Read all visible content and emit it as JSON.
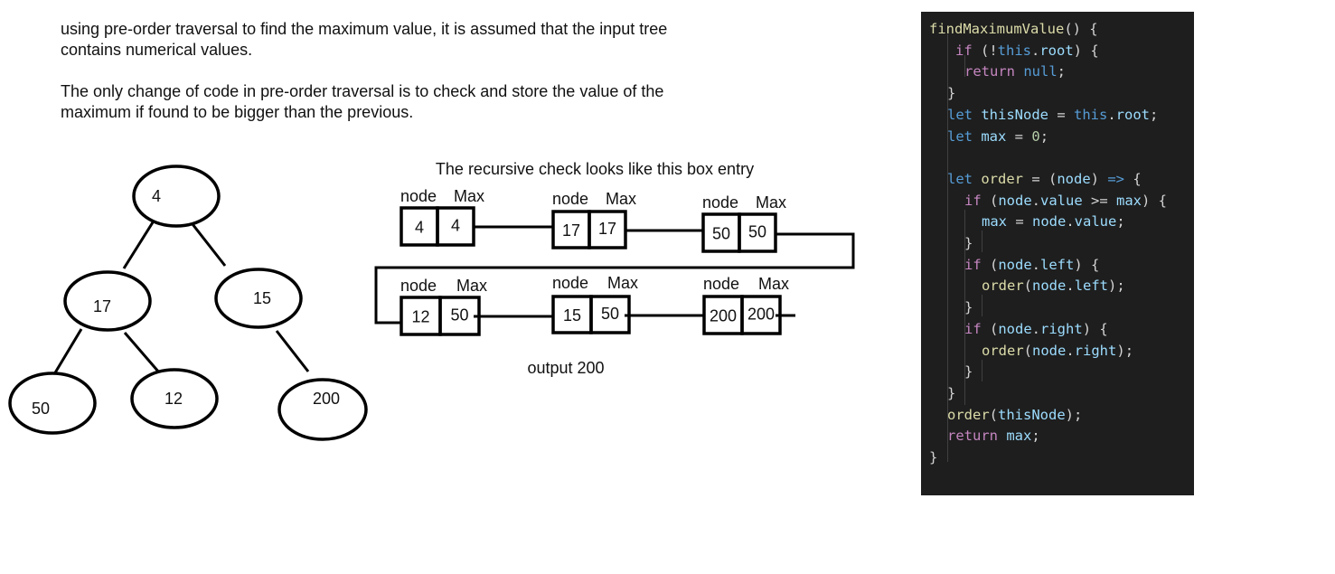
{
  "intro": {
    "line1": "using pre-order traversal to find the maximum value, it is assumed that the input tree",
    "line2": "contains numerical values.",
    "line3": "The only change of code in pre-order traversal is to check and store the value of the",
    "line4": "maximum if found to be bigger than the previous."
  },
  "tree": {
    "nodes": [
      {
        "id": "n4",
        "label": "4"
      },
      {
        "id": "n17",
        "label": "17"
      },
      {
        "id": "n15",
        "label": "15"
      },
      {
        "id": "n50",
        "label": "50"
      },
      {
        "id": "n12",
        "label": "12"
      },
      {
        "id": "n200",
        "label": "200"
      }
    ],
    "edges": [
      [
        "n4",
        "n17"
      ],
      [
        "n4",
        "n15"
      ],
      [
        "n17",
        "n50"
      ],
      [
        "n17",
        "n12"
      ],
      [
        "n15",
        "n200"
      ]
    ]
  },
  "recursion": {
    "caption": "The recursive check looks like this box entry",
    "header_node": "node",
    "header_max": "Max",
    "steps": [
      {
        "node": "4",
        "max": "4"
      },
      {
        "node": "17",
        "max": "17"
      },
      {
        "node": "50",
        "max": "50"
      },
      {
        "node": "12",
        "max": "50"
      },
      {
        "node": "15",
        "max": "50"
      },
      {
        "node": "200",
        "max": "200"
      }
    ],
    "output": "output 200"
  },
  "code": {
    "colors": {
      "bg": "#1e1e1e",
      "func": "#dcdcaa",
      "kw": "#569cd6",
      "ctrl": "#c586c0",
      "var": "#9cdcfe",
      "num": "#b5cea8",
      "punc": "#d4d4d4"
    },
    "lines": [
      [
        [
          "findMaximumValue",
          "func"
        ],
        [
          "() {",
          "punc"
        ]
      ],
      [
        [
          "if",
          "ctrl"
        ],
        [
          " (!",
          "punc"
        ],
        [
          "this",
          "kw"
        ],
        [
          ".",
          "punc"
        ],
        [
          "root",
          "var"
        ],
        [
          ") {",
          "punc"
        ]
      ],
      [
        [
          "return",
          "ctrl"
        ],
        [
          " ",
          "punc"
        ],
        [
          "null",
          "kw"
        ],
        [
          ";",
          "punc"
        ]
      ],
      [
        [
          "}",
          "punc"
        ]
      ],
      [
        [
          "let",
          "kw"
        ],
        [
          " ",
          "punc"
        ],
        [
          "thisNode",
          "var"
        ],
        [
          " = ",
          "punc"
        ],
        [
          "this",
          "kw"
        ],
        [
          ".",
          "punc"
        ],
        [
          "root",
          "var"
        ],
        [
          ";",
          "punc"
        ]
      ],
      [
        [
          "let",
          "kw"
        ],
        [
          " ",
          "punc"
        ],
        [
          "max",
          "var"
        ],
        [
          " = ",
          "punc"
        ],
        [
          "0",
          "num"
        ],
        [
          ";",
          "punc"
        ]
      ],
      [],
      [
        [
          "let",
          "kw"
        ],
        [
          " ",
          "punc"
        ],
        [
          "order",
          "func"
        ],
        [
          " = (",
          "punc"
        ],
        [
          "node",
          "var"
        ],
        [
          ") ",
          "punc"
        ],
        [
          "=>",
          "kw"
        ],
        [
          " {",
          "punc"
        ]
      ],
      [
        [
          "if",
          "ctrl"
        ],
        [
          " (",
          "punc"
        ],
        [
          "node",
          "var"
        ],
        [
          ".",
          "punc"
        ],
        [
          "value",
          "var"
        ],
        [
          " >= ",
          "punc"
        ],
        [
          "max",
          "var"
        ],
        [
          ") {",
          "punc"
        ]
      ],
      [
        [
          "max",
          "var"
        ],
        [
          " = ",
          "punc"
        ],
        [
          "node",
          "var"
        ],
        [
          ".",
          "punc"
        ],
        [
          "value",
          "var"
        ],
        [
          ";",
          "punc"
        ]
      ],
      [
        [
          "}",
          "punc"
        ]
      ],
      [
        [
          "if",
          "ctrl"
        ],
        [
          " (",
          "punc"
        ],
        [
          "node",
          "var"
        ],
        [
          ".",
          "punc"
        ],
        [
          "left",
          "var"
        ],
        [
          ") {",
          "punc"
        ]
      ],
      [
        [
          "order",
          "func"
        ],
        [
          "(",
          "punc"
        ],
        [
          "node",
          "var"
        ],
        [
          ".",
          "punc"
        ],
        [
          "left",
          "var"
        ],
        [
          ");",
          "punc"
        ]
      ],
      [
        [
          "}",
          "punc"
        ]
      ],
      [
        [
          "if",
          "ctrl"
        ],
        [
          " (",
          "punc"
        ],
        [
          "node",
          "var"
        ],
        [
          ".",
          "punc"
        ],
        [
          "right",
          "var"
        ],
        [
          ") {",
          "punc"
        ]
      ],
      [
        [
          "order",
          "func"
        ],
        [
          "(",
          "punc"
        ],
        [
          "node",
          "var"
        ],
        [
          ".",
          "punc"
        ],
        [
          "right",
          "var"
        ],
        [
          ");",
          "punc"
        ]
      ],
      [
        [
          "}",
          "punc"
        ]
      ],
      [
        [
          "}",
          "punc"
        ]
      ],
      [
        [
          "order",
          "func"
        ],
        [
          "(",
          "punc"
        ],
        [
          "thisNode",
          "var"
        ],
        [
          ");",
          "punc"
        ]
      ],
      [
        [
          "return",
          "ctrl"
        ],
        [
          " ",
          "punc"
        ],
        [
          "max",
          "var"
        ],
        [
          ";",
          "punc"
        ]
      ],
      [
        [
          "}",
          "punc"
        ]
      ]
    ]
  }
}
